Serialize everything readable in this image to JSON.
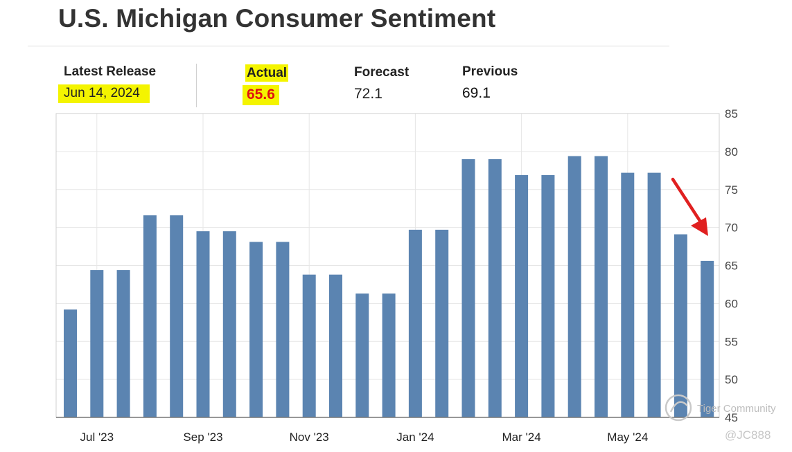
{
  "title": "U.S. Michigan Consumer Sentiment",
  "stats": {
    "latest_release": {
      "label": "Latest Release",
      "value": "Jun 14, 2024"
    },
    "actual": {
      "label": "Actual",
      "value": "65.6"
    },
    "forecast": {
      "label": "Forecast",
      "value": "72.1"
    },
    "previous": {
      "label": "Previous",
      "value": "69.1"
    }
  },
  "colors": {
    "bar": "#5b84b1",
    "highlight": "#f4f400",
    "actual_value": "#e01010",
    "arrow": "#e02020"
  },
  "chart_data": {
    "type": "bar",
    "title": "",
    "xlabel": "",
    "ylabel": "",
    "ylim": [
      45,
      85
    ],
    "y_ticks": [
      45,
      50,
      55,
      60,
      65,
      70,
      75,
      80,
      85
    ],
    "y_axis_position": "right",
    "grid": true,
    "x_tick_labels": [
      "Jul '23",
      "Sep '23",
      "Nov '23",
      "Jan '24",
      "Mar '24",
      "May '24"
    ],
    "values": [
      59.2,
      64.4,
      64.4,
      71.6,
      71.6,
      69.5,
      69.5,
      68.1,
      68.1,
      63.8,
      63.8,
      61.3,
      61.3,
      69.7,
      69.7,
      79.0,
      79.0,
      76.9,
      76.9,
      79.4,
      79.4,
      77.2,
      77.2,
      69.1,
      65.6
    ],
    "annotation": "red arrow pointing to latest bar"
  },
  "watermark": {
    "brand": "Tiger Community",
    "handle": "@JC888"
  }
}
